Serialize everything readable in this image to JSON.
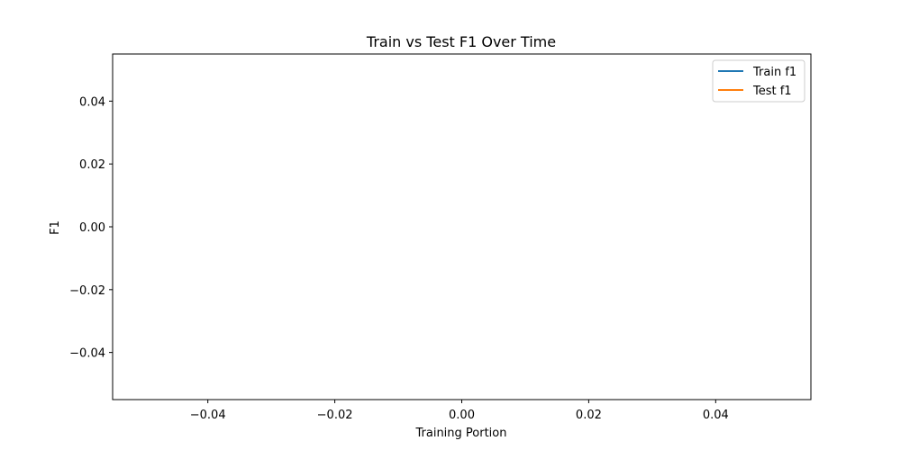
{
  "chart_data": {
    "type": "line",
    "title": "Train vs Test F1 Over Time",
    "xlabel": "Training Portion",
    "ylabel": "F1",
    "xlim": [
      -0.055,
      0.055
    ],
    "ylim": [
      -0.055,
      0.055
    ],
    "x_ticks": [
      -0.04,
      -0.02,
      0.0,
      0.02,
      0.04
    ],
    "x_tick_labels": [
      "−0.04",
      "−0.02",
      "0.00",
      "0.02",
      "0.04"
    ],
    "y_ticks": [
      -0.04,
      -0.02,
      0.0,
      0.02,
      0.04
    ],
    "y_tick_labels": [
      "−0.04",
      "−0.02",
      "0.00",
      "0.02",
      "0.04"
    ],
    "grid": false,
    "legend_position": "top-right",
    "series": [
      {
        "name": "Train f1",
        "color": "#1f77b4",
        "x": [],
        "y": []
      },
      {
        "name": "Test f1",
        "color": "#ff7f0e",
        "x": [],
        "y": []
      }
    ]
  }
}
